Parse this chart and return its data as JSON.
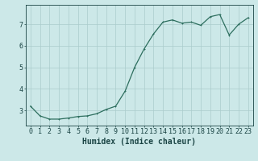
{
  "title": "",
  "xlabel": "Humidex (Indice chaleur)",
  "x_values": [
    0,
    1,
    2,
    3,
    4,
    5,
    6,
    7,
    8,
    9,
    10,
    11,
    12,
    13,
    14,
    15,
    16,
    17,
    18,
    19,
    20,
    21,
    22,
    23
  ],
  "y_values": [
    3.2,
    2.75,
    2.6,
    2.6,
    2.65,
    2.72,
    2.75,
    2.85,
    3.05,
    3.2,
    3.9,
    5.0,
    5.85,
    6.55,
    7.1,
    7.2,
    7.05,
    7.1,
    6.95,
    7.35,
    7.45,
    6.5,
    7.0,
    7.3
  ],
  "line_color": "#2d6e5e",
  "marker_color": "#2d6e5e",
  "bg_color": "#cce8e8",
  "grid_color": "#aacccc",
  "tick_color": "#1a4444",
  "label_color": "#1a4444",
  "ylim": [
    2.3,
    7.9
  ],
  "yticks": [
    3,
    4,
    5,
    6,
    7
  ],
  "xticks": [
    0,
    1,
    2,
    3,
    4,
    5,
    6,
    7,
    8,
    9,
    10,
    11,
    12,
    13,
    14,
    15,
    16,
    17,
    18,
    19,
    20,
    21,
    22,
    23
  ],
  "xlabel_fontsize": 7,
  "tick_fontsize": 6,
  "linewidth": 0.9,
  "markersize": 2.0
}
